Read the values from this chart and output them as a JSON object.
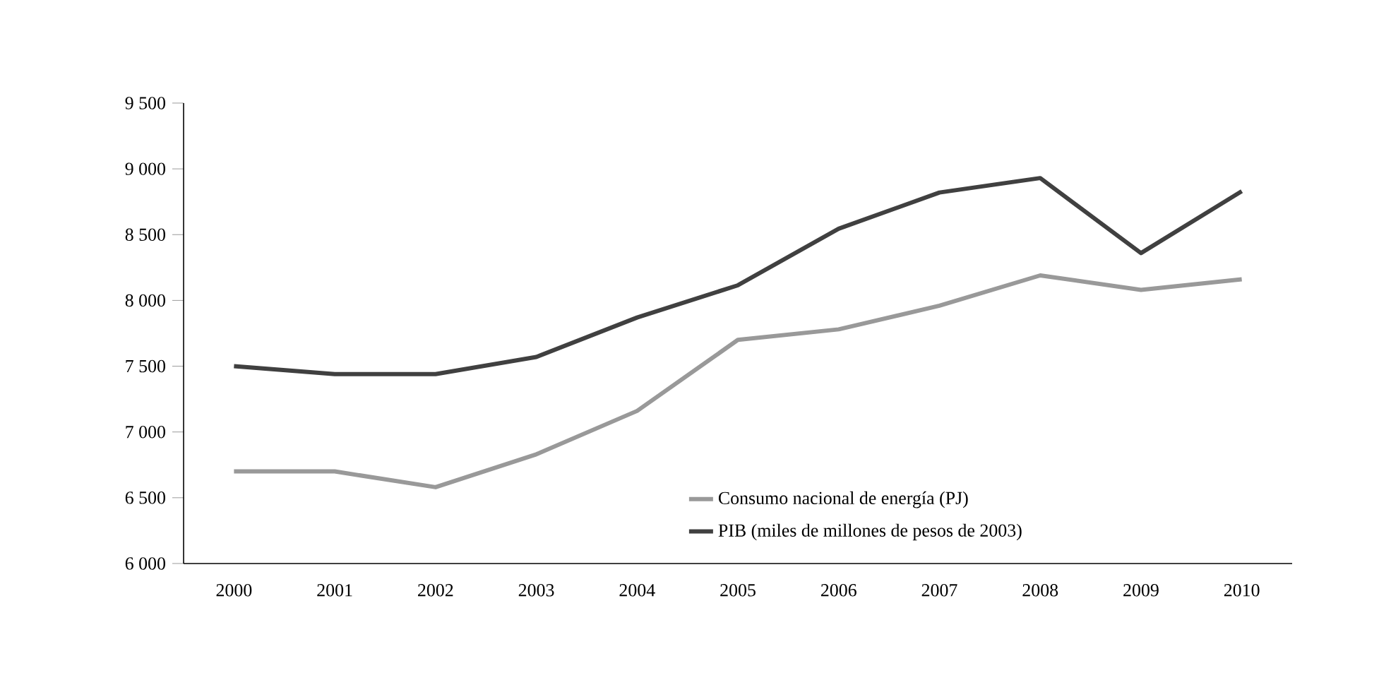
{
  "chart_data": {
    "type": "line",
    "categories": [
      "2000",
      "2001",
      "2002",
      "2003",
      "2004",
      "2005",
      "2006",
      "2007",
      "2008",
      "2009",
      "2010"
    ],
    "series": [
      {
        "name": "Consumo nacional de energía (PJ)",
        "color": "#999999",
        "values": [
          6700,
          6700,
          6580,
          6830,
          7160,
          7700,
          7780,
          7960,
          8190,
          8080,
          8160
        ]
      },
      {
        "name": "PIB (miles de millones de pesos de 2003)",
        "color": "#404040",
        "values": [
          7500,
          7440,
          7440,
          7570,
          7870,
          8115,
          8545,
          8820,
          8930,
          8360,
          8830
        ]
      }
    ],
    "ylim": [
      6000,
      9500
    ],
    "yticks": [
      {
        "value": 6000,
        "label": "6 000"
      },
      {
        "value": 6500,
        "label": "6 500"
      },
      {
        "value": 7000,
        "label": "7 000"
      },
      {
        "value": 7500,
        "label": "7 500"
      },
      {
        "value": 8000,
        "label": "8 000"
      },
      {
        "value": 8500,
        "label": "8 500"
      },
      {
        "value": 9000,
        "label": "9 000"
      },
      {
        "value": 9500,
        "label": "9 500"
      }
    ],
    "grid": false,
    "legend": "bottom right",
    "marker": "none",
    "line_style": "solid"
  }
}
